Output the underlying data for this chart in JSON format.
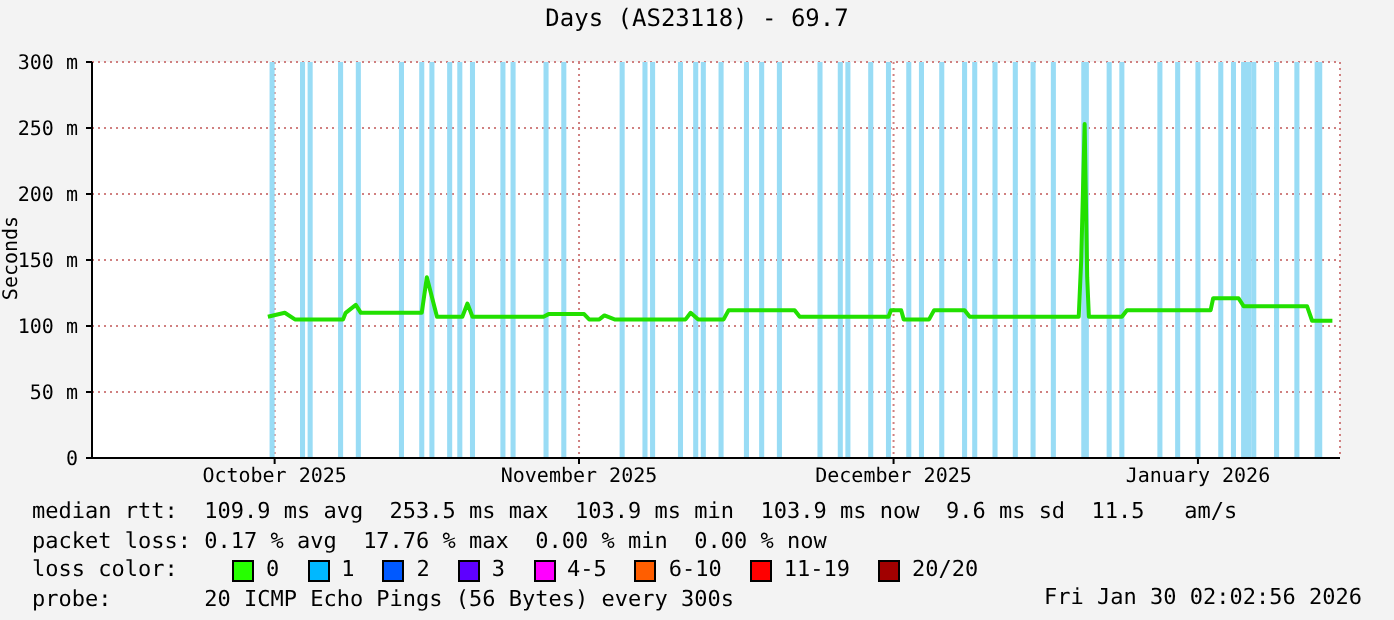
{
  "chart_data": {
    "type": "line",
    "title": "Days (AS23118) - 69.7",
    "ylabel": "Seconds",
    "xlim": [
      "2025-09-28",
      "2026-01-29"
    ],
    "xticks": [
      {
        "value": "2025-10-16",
        "label": "October 2025"
      },
      {
        "value": "2025-11-15",
        "label": "November 2025"
      },
      {
        "value": "2025-12-16",
        "label": "December 2025"
      },
      {
        "value": "2026-01-15",
        "label": "January 2026"
      }
    ],
    "ylim": [
      0,
      300
    ],
    "yticks": [
      {
        "value": 0,
        "label": "0"
      },
      {
        "value": 50,
        "label": "50 m"
      },
      {
        "value": 100,
        "label": "100 m"
      },
      {
        "value": 150,
        "label": "150 m"
      },
      {
        "value": 200,
        "label": "200 m"
      },
      {
        "value": 250,
        "label": "250 m"
      },
      {
        "value": 300,
        "label": "300 m"
      }
    ],
    "grid": true,
    "marker": "none",
    "line_style": "solid",
    "legend": false,
    "series": [
      {
        "color": "#22e000",
        "x": [
          "2025-10-15T08:00",
          "2025-10-17T00:00",
          "2025-10-18T00:00",
          "2025-10-22T18:00",
          "2025-10-23T00:00",
          "2025-10-24T00:00",
          "2025-10-24T12:00",
          "2025-10-30T12:00",
          "2025-10-31T00:00",
          "2025-11-01T00:00",
          "2025-11-03T12:00",
          "2025-11-04T00:00",
          "2025-11-04T12:00",
          "2025-11-11T12:00",
          "2025-11-12T00:00",
          "2025-11-15T12:00",
          "2025-11-16T00:00",
          "2025-11-17T00:00",
          "2025-11-17T12:00",
          "2025-11-18T12:00",
          "2025-11-25T12:00",
          "2025-11-26T00:00",
          "2025-11-26T18:00",
          "2025-11-29T06:00",
          "2025-11-29T18:00",
          "2025-12-06T06:00",
          "2025-12-06T18:00",
          "2025-12-15T12:00",
          "2025-12-15T18:00",
          "2025-12-16T18:00",
          "2025-12-17T00:00",
          "2025-12-19T12:00",
          "2025-12-20T00:00",
          "2025-12-23T00:00",
          "2025-12-23T12:00",
          "2026-01-03T06:00",
          "2026-01-03T12:00",
          "2026-01-03T20:00",
          "2026-01-04T02:00",
          "2026-01-04T06:00",
          "2026-01-07T12:00",
          "2026-01-08T00:00",
          "2026-01-16T06:00",
          "2026-01-16T12:00",
          "2026-01-19T00:00",
          "2026-01-19T12:00",
          "2026-01-25T18:00",
          "2026-01-26T06:00",
          "2026-01-28T06:00"
        ],
        "values": [
          107,
          110,
          105,
          105,
          110,
          116,
          110,
          110,
          137,
          107,
          107,
          117,
          107,
          107,
          109,
          109,
          105,
          105,
          108,
          105,
          105,
          110,
          105,
          105,
          112,
          112,
          107,
          107,
          112,
          112,
          105,
          105,
          112,
          112,
          107,
          107,
          151,
          253,
          137,
          107,
          107,
          112,
          112,
          121,
          121,
          115,
          115,
          104,
          104
        ]
      }
    ],
    "bands": [
      {
        "axis": "x",
        "from": "2025-10-15T12:00",
        "to": "2025-10-16T00:00",
        "color": "#99dcf5"
      },
      {
        "axis": "x",
        "from": "2025-10-18T12:00",
        "to": "2025-10-19T00:00",
        "color": "#99dcf5"
      },
      {
        "axis": "x",
        "from": "2025-10-19T06:00",
        "to": "2025-10-19T18:00",
        "color": "#99dcf5"
      },
      {
        "axis": "x",
        "from": "2025-10-22T06:00",
        "to": "2025-10-22T18:00",
        "color": "#99dcf5"
      },
      {
        "axis": "x",
        "from": "2025-10-24T00:00",
        "to": "2025-10-24T12:00",
        "color": "#99dcf5"
      },
      {
        "axis": "x",
        "from": "2025-10-28T06:00",
        "to": "2025-10-28T18:00",
        "color": "#99dcf5"
      },
      {
        "axis": "x",
        "from": "2025-10-30T06:00",
        "to": "2025-10-30T18:00",
        "color": "#99dcf5"
      },
      {
        "axis": "x",
        "from": "2025-10-31T06:00",
        "to": "2025-10-31T18:00",
        "color": "#99dcf5"
      },
      {
        "axis": "x",
        "from": "2025-11-02T00:00",
        "to": "2025-11-02T12:00",
        "color": "#99dcf5"
      },
      {
        "axis": "x",
        "from": "2025-11-03T00:00",
        "to": "2025-11-03T12:00",
        "color": "#99dcf5"
      },
      {
        "axis": "x",
        "from": "2025-11-04T06:00",
        "to": "2025-11-04T18:00",
        "color": "#99dcf5"
      },
      {
        "axis": "x",
        "from": "2025-11-07T06:00",
        "to": "2025-11-07T18:00",
        "color": "#99dcf5"
      },
      {
        "axis": "x",
        "from": "2025-11-08T06:00",
        "to": "2025-11-08T18:00",
        "color": "#99dcf5"
      },
      {
        "axis": "x",
        "from": "2025-11-11T12:00",
        "to": "2025-11-12T00:00",
        "color": "#99dcf5"
      },
      {
        "axis": "x",
        "from": "2025-11-13T06:00",
        "to": "2025-11-13T18:00",
        "color": "#99dcf5"
      },
      {
        "axis": "x",
        "from": "2025-11-19T00:00",
        "to": "2025-11-19T12:00",
        "color": "#99dcf5"
      },
      {
        "axis": "x",
        "from": "2025-11-21T06:00",
        "to": "2025-11-21T18:00",
        "color": "#99dcf5"
      },
      {
        "axis": "x",
        "from": "2025-11-22T00:00",
        "to": "2025-11-22T12:00",
        "color": "#99dcf5"
      },
      {
        "axis": "x",
        "from": "2025-11-24T18:00",
        "to": "2025-11-25T06:00",
        "color": "#99dcf5"
      },
      {
        "axis": "x",
        "from": "2025-11-26T06:00",
        "to": "2025-11-26T18:00",
        "color": "#99dcf5"
      },
      {
        "axis": "x",
        "from": "2025-11-27T00:00",
        "to": "2025-11-27T12:00",
        "color": "#99dcf5"
      },
      {
        "axis": "x",
        "from": "2025-11-28T18:00",
        "to": "2025-11-29T06:00",
        "color": "#99dcf5"
      },
      {
        "axis": "x",
        "from": "2025-12-01T06:00",
        "to": "2025-12-01T18:00",
        "color": "#99dcf5"
      },
      {
        "axis": "x",
        "from": "2025-12-02T18:00",
        "to": "2025-12-03T06:00",
        "color": "#99dcf5"
      },
      {
        "axis": "x",
        "from": "2025-12-04T12:00",
        "to": "2025-12-05T00:00",
        "color": "#99dcf5"
      },
      {
        "axis": "x",
        "from": "2025-12-08T12:00",
        "to": "2025-12-09T00:00",
        "color": "#99dcf5"
      },
      {
        "axis": "x",
        "from": "2025-12-10T12:00",
        "to": "2025-12-11T00:00",
        "color": "#99dcf5"
      },
      {
        "axis": "x",
        "from": "2025-12-11T06:00",
        "to": "2025-12-11T18:00",
        "color": "#99dcf5"
      },
      {
        "axis": "x",
        "from": "2025-12-13T12:00",
        "to": "2025-12-14T00:00",
        "color": "#99dcf5"
      },
      {
        "axis": "x",
        "from": "2025-12-15T06:00",
        "to": "2025-12-15T18:00",
        "color": "#99dcf5"
      },
      {
        "axis": "x",
        "from": "2025-12-17T06:00",
        "to": "2025-12-17T18:00",
        "color": "#99dcf5"
      },
      {
        "axis": "x",
        "from": "2025-12-18T12:00",
        "to": "2025-12-19T00:00",
        "color": "#99dcf5"
      },
      {
        "axis": "x",
        "from": "2025-12-20T12:00",
        "to": "2025-12-21T00:00",
        "color": "#99dcf5"
      },
      {
        "axis": "x",
        "from": "2025-12-22T18:00",
        "to": "2025-12-23T06:00",
        "color": "#99dcf5"
      },
      {
        "axis": "x",
        "from": "2025-12-23T18:00",
        "to": "2025-12-24T06:00",
        "color": "#99dcf5"
      },
      {
        "axis": "x",
        "from": "2025-12-25T18:00",
        "to": "2025-12-26T06:00",
        "color": "#99dcf5"
      },
      {
        "axis": "x",
        "from": "2025-12-27T18:00",
        "to": "2025-12-28T06:00",
        "color": "#99dcf5"
      },
      {
        "axis": "x",
        "from": "2025-12-29T12:00",
        "to": "2025-12-30T00:00",
        "color": "#99dcf5"
      },
      {
        "axis": "x",
        "from": "2025-12-31T12:00",
        "to": "2026-01-01T00:00",
        "color": "#99dcf5"
      },
      {
        "axis": "x",
        "from": "2026-01-03T12:00",
        "to": "2026-01-04T06:00",
        "color": "#99dcf5"
      },
      {
        "axis": "x",
        "from": "2026-01-06T00:00",
        "to": "2026-01-06T12:00",
        "color": "#99dcf5"
      },
      {
        "axis": "x",
        "from": "2026-01-07T06:00",
        "to": "2026-01-07T18:00",
        "color": "#99dcf5"
      },
      {
        "axis": "x",
        "from": "2026-01-11T00:00",
        "to": "2026-01-11T12:00",
        "color": "#99dcf5"
      },
      {
        "axis": "x",
        "from": "2026-01-12T18:00",
        "to": "2026-01-13T06:00",
        "color": "#99dcf5"
      },
      {
        "axis": "x",
        "from": "2026-01-14T18:00",
        "to": "2026-01-15T06:00",
        "color": "#99dcf5"
      },
      {
        "axis": "x",
        "from": "2026-01-17T00:00",
        "to": "2026-01-17T12:00",
        "color": "#99dcf5"
      },
      {
        "axis": "x",
        "from": "2026-01-18T06:00",
        "to": "2026-01-18T18:00",
        "color": "#99dcf5"
      },
      {
        "axis": "x",
        "from": "2026-01-19T06:00",
        "to": "2026-01-20T06:00",
        "color": "#99dcf5"
      },
      {
        "axis": "x",
        "from": "2026-01-20T06:00",
        "to": "2026-01-20T18:00",
        "color": "#99dcf5"
      },
      {
        "axis": "x",
        "from": "2026-01-22T12:00",
        "to": "2026-01-23T00:00",
        "color": "#99dcf5"
      },
      {
        "axis": "x",
        "from": "2026-01-24T12:00",
        "to": "2026-01-25T00:00",
        "color": "#99dcf5"
      },
      {
        "axis": "x",
        "from": "2026-01-26T12:00",
        "to": "2026-01-27T06:00",
        "color": "#99dcf5"
      }
    ],
    "annotations": [
      "median rtt:  109.9 ms avg  253.5 ms max  103.9 ms min  103.9 ms now  9.6 ms sd  11.5   am/s",
      "packet loss: 0.17 % avg  17.76 % max  0.00 % min  0.00 % now",
      "loss color:",
      "0",
      "1",
      "2",
      "3",
      "4-5",
      "6-10",
      "11-19",
      "20/20",
      "probe:       20 ICMP Echo Pings (56 Bytes) every 300s",
      "Fri Jan 30 02:02:56 2026"
    ]
  }
}
